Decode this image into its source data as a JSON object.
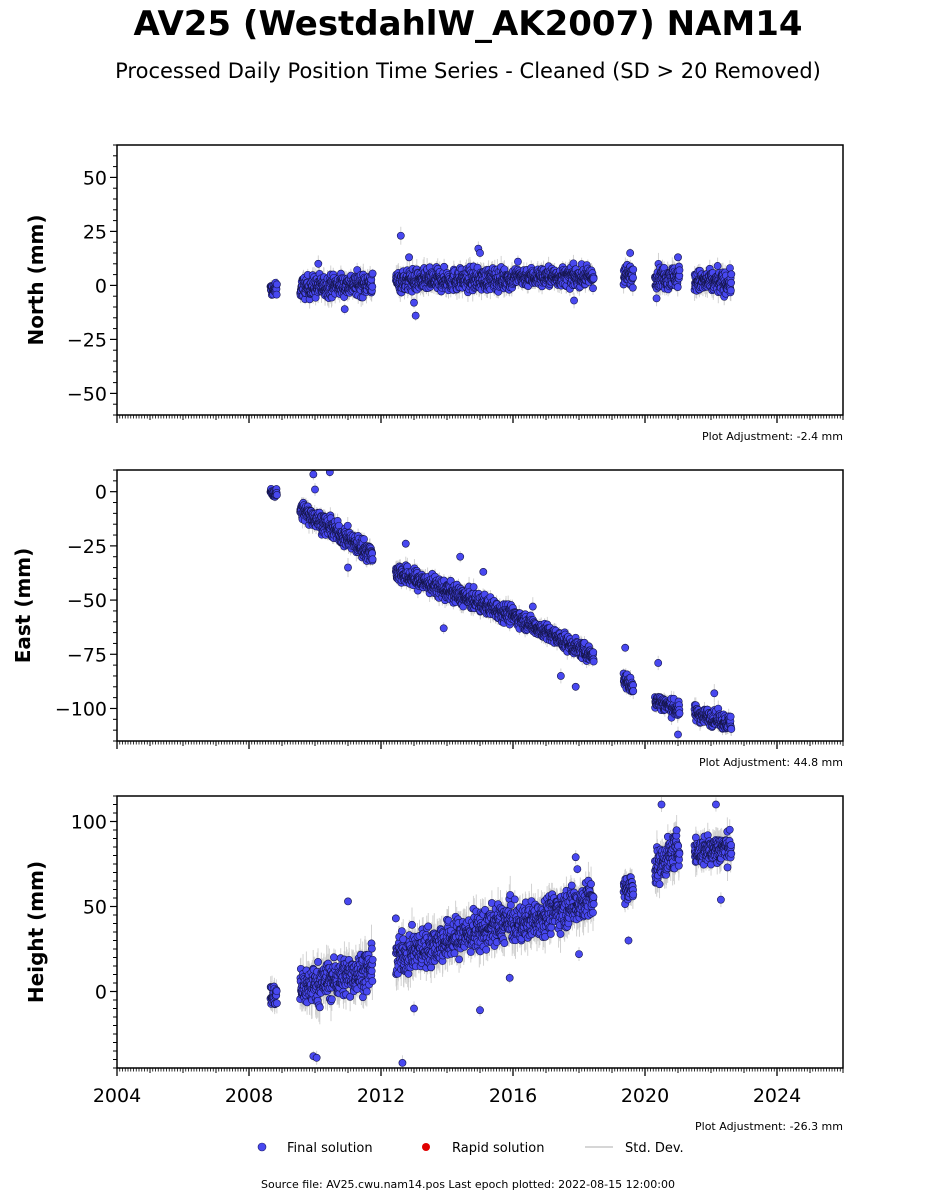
{
  "title": "AV25 (WestdahlW_AK2007) NAM14",
  "subtitle": "Processed Daily Position Time Series - Cleaned (SD > 20 Removed)",
  "legend": {
    "final_label": "Final solution",
    "rapid_label": "Rapid solution",
    "std_label": "Std. Dev.",
    "final_color": "#4848f0",
    "rapid_color": "#e00000",
    "std_color": "#c8c8c8"
  },
  "footer": "Source file: AV25.cwu.nam14.pos  Last epoch plotted: 2022-08-15 12:00:00",
  "chart_data": [
    {
      "type": "scatter",
      "ylabel": "North (mm)",
      "xlim": [
        2004,
        2026
      ],
      "ylim": [
        -60,
        65
      ],
      "yticks": [
        -50,
        -25,
        0,
        25,
        50
      ],
      "xticks": [
        2004,
        2008,
        2012,
        2016,
        2020,
        2024
      ],
      "adjustment": "Plot Adjustment: -2.4 mm",
      "segments": [
        {
          "start": 2008.65,
          "end": 2008.85,
          "y0": -2,
          "y1": -2,
          "spread": 2.0
        },
        {
          "start": 2009.55,
          "end": 2011.75,
          "y0": -1,
          "y1": 1,
          "spread": 3.5
        },
        {
          "start": 2012.45,
          "end": 2016.0,
          "y0": 2,
          "y1": 3,
          "spread": 3.5
        },
        {
          "start": 2016.0,
          "end": 2018.45,
          "y0": 4,
          "y1": 4,
          "spread": 3.0
        },
        {
          "start": 2019.35,
          "end": 2019.65,
          "y0": 4,
          "y1": 5,
          "spread": 3.5
        },
        {
          "start": 2020.3,
          "end": 2021.05,
          "y0": 4,
          "y1": 4,
          "spread": 3.5
        },
        {
          "start": 2021.5,
          "end": 2022.62,
          "y0": 2,
          "y1": 1,
          "spread": 3.5
        }
      ],
      "outliers": [
        [
          2012.6,
          23
        ],
        [
          2013.05,
          -14
        ],
        [
          2013.0,
          -8
        ],
        [
          2014.95,
          17
        ],
        [
          2015.0,
          15
        ],
        [
          2012.85,
          13
        ],
        [
          2019.55,
          15
        ],
        [
          2020.35,
          -6
        ],
        [
          2010.1,
          10
        ],
        [
          2010.9,
          -11
        ],
        [
          2017.85,
          -7
        ],
        [
          2022.2,
          9
        ],
        [
          2016.15,
          11
        ],
        [
          2021.0,
          13
        ]
      ]
    },
    {
      "type": "scatter",
      "ylabel": "East (mm)",
      "xlim": [
        2004,
        2026
      ],
      "ylim": [
        -115,
        10
      ],
      "yticks": [
        -100,
        -75,
        -50,
        -25,
        0
      ],
      "xticks": [
        2004,
        2008,
        2012,
        2016,
        2020,
        2024
      ],
      "adjustment": "Plot Adjustment: 44.8 mm",
      "segments": [
        {
          "start": 2008.65,
          "end": 2008.85,
          "y0": 0,
          "y1": -1,
          "spread": 1.5
        },
        {
          "start": 2009.55,
          "end": 2011.75,
          "y0": -8,
          "y1": -29,
          "spread": 3.0
        },
        {
          "start": 2012.45,
          "end": 2016.0,
          "y0": -37,
          "y1": -57,
          "spread": 3.0
        },
        {
          "start": 2016.0,
          "end": 2018.45,
          "y0": -57,
          "y1": -76,
          "spread": 2.5
        },
        {
          "start": 2019.35,
          "end": 2019.65,
          "y0": -86,
          "y1": -91,
          "spread": 2.5
        },
        {
          "start": 2020.3,
          "end": 2021.05,
          "y0": -96,
          "y1": -101,
          "spread": 2.5
        },
        {
          "start": 2021.5,
          "end": 2022.62,
          "y0": -102,
          "y1": -107,
          "spread": 2.5
        }
      ],
      "outliers": [
        [
          2009.95,
          8
        ],
        [
          2010.45,
          9
        ],
        [
          2010.0,
          1
        ],
        [
          2012.75,
          -24
        ],
        [
          2014.4,
          -30
        ],
        [
          2015.1,
          -37
        ],
        [
          2016.6,
          -53
        ],
        [
          2017.45,
          -85
        ],
        [
          2017.9,
          -90
        ],
        [
          2019.4,
          -72
        ],
        [
          2020.4,
          -79
        ],
        [
          2021.0,
          -112
        ],
        [
          2022.1,
          -93
        ],
        [
          2011.0,
          -35
        ],
        [
          2013.9,
          -63
        ]
      ]
    },
    {
      "type": "scatter",
      "ylabel": "Height (mm)",
      "xlim": [
        2004,
        2026
      ],
      "ylim": [
        -45,
        115
      ],
      "yticks": [
        0,
        50,
        100
      ],
      "xticks": [
        2004,
        2008,
        2012,
        2016,
        2020,
        2024
      ],
      "xticklabels": [
        "2004",
        "2008",
        "2012",
        "2016",
        "2020",
        "2024"
      ],
      "adjustment": "Plot Adjustment: -26.3 mm",
      "segments": [
        {
          "start": 2008.65,
          "end": 2008.85,
          "y0": -3,
          "y1": -3,
          "spread": 5.0
        },
        {
          "start": 2009.55,
          "end": 2011.75,
          "y0": 2,
          "y1": 13,
          "spread": 8.0
        },
        {
          "start": 2012.45,
          "end": 2016.0,
          "y0": 20,
          "y1": 42,
          "spread": 8.0
        },
        {
          "start": 2016.0,
          "end": 2018.45,
          "y0": 38,
          "y1": 55,
          "spread": 7.5
        },
        {
          "start": 2019.35,
          "end": 2019.65,
          "y0": 58,
          "y1": 62,
          "spread": 6.0
        },
        {
          "start": 2020.3,
          "end": 2021.05,
          "y0": 72,
          "y1": 85,
          "spread": 7.0
        },
        {
          "start": 2021.5,
          "end": 2022.62,
          "y0": 82,
          "y1": 85,
          "spread": 6.0
        }
      ],
      "outliers": [
        [
          2012.65,
          -42
        ],
        [
          2009.95,
          -38
        ],
        [
          2010.05,
          -39
        ],
        [
          2011.0,
          53
        ],
        [
          2012.45,
          43
        ],
        [
          2013.0,
          -10
        ],
        [
          2017.9,
          79
        ],
        [
          2017.95,
          72
        ],
        [
          2020.5,
          110
        ],
        [
          2022.15,
          110
        ],
        [
          2022.3,
          54
        ],
        [
          2019.5,
          30
        ],
        [
          2015.9,
          8
        ],
        [
          2015.0,
          -11
        ],
        [
          2018.0,
          22
        ]
      ]
    }
  ]
}
